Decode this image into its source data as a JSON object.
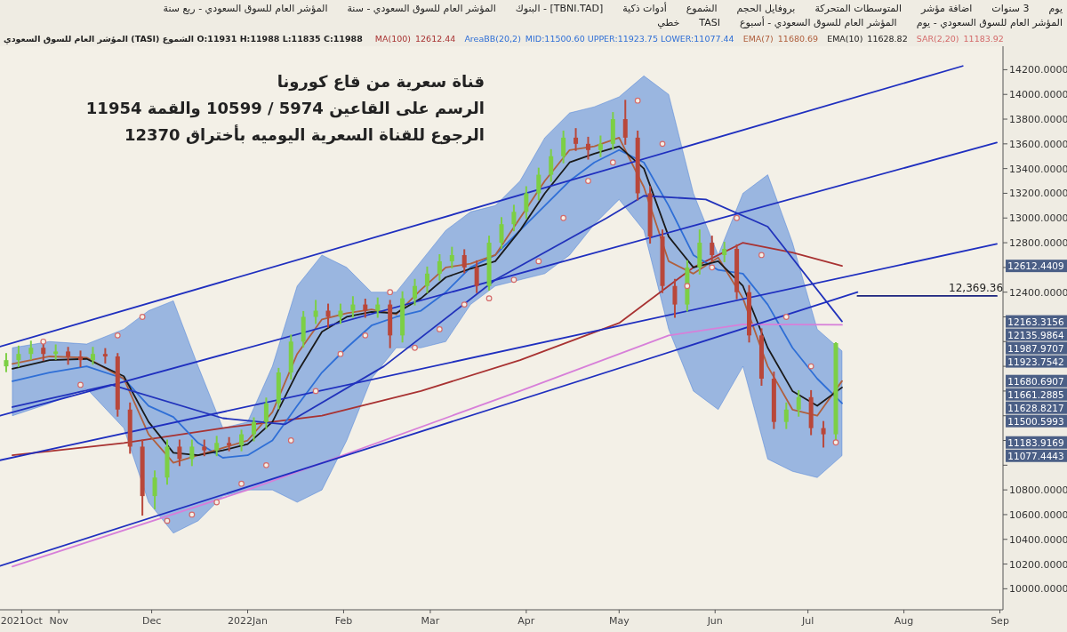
{
  "chart_data": {
    "type": "candlestick",
    "title": "قناة سعرية من قاع كورونا",
    "subtitle": "المؤشر العام للسوق السعودي (TASI) الشموع O:11931 H:11988 L:11835 C:11988",
    "x": [
      "2021-10-15",
      "2021-10-19",
      "2021-10-23",
      "2021-10-27",
      "2021-10-31",
      "2021-11-04",
      "2021-11-08",
      "2021-11-12",
      "2021-11-16",
      "2021-11-20",
      "2021-11-24",
      "2021-11-28",
      "2021-12-02",
      "2021-12-06",
      "2021-12-10",
      "2021-12-14",
      "2021-12-18",
      "2021-12-22",
      "2021-12-26",
      "2021-12-30",
      "2022-01-03",
      "2022-01-07",
      "2022-01-11",
      "2022-01-15",
      "2022-01-19",
      "2022-01-23",
      "2022-01-27",
      "2022-01-31",
      "2022-02-04",
      "2022-02-08",
      "2022-02-12",
      "2022-02-16",
      "2022-02-20",
      "2022-02-24",
      "2022-02-28",
      "2022-03-04",
      "2022-03-08",
      "2022-03-12",
      "2022-03-16",
      "2022-03-20",
      "2022-03-24",
      "2022-03-28",
      "2022-04-01",
      "2022-04-05",
      "2022-04-09",
      "2022-04-13",
      "2022-04-17",
      "2022-04-21",
      "2022-04-25",
      "2022-04-29",
      "2022-05-03",
      "2022-05-07",
      "2022-05-11",
      "2022-05-15",
      "2022-05-19",
      "2022-05-23",
      "2022-05-27",
      "2022-05-31",
      "2022-06-04",
      "2022-06-08",
      "2022-06-12",
      "2022-06-16",
      "2022-06-20",
      "2022-06-24",
      "2022-06-28",
      "2022-07-02",
      "2022-07-06",
      "2022-07-10"
    ],
    "ohlc": [
      [
        11800,
        11900,
        11760,
        11850
      ],
      [
        11850,
        11960,
        11800,
        11900
      ],
      [
        11900,
        12000,
        11860,
        11950
      ],
      [
        11950,
        11990,
        11850,
        11900
      ],
      [
        11900,
        11970,
        11860,
        11920
      ],
      [
        11920,
        11950,
        11820,
        11880
      ],
      [
        11880,
        11920,
        11800,
        11850
      ],
      [
        11850,
        11950,
        11820,
        11900
      ],
      [
        11900,
        11940,
        11830,
        11880
      ],
      [
        11880,
        11900,
        11400,
        11450
      ],
      [
        11450,
        11500,
        11100,
        11150
      ],
      [
        11150,
        11200,
        10599,
        10750
      ],
      [
        10750,
        10950,
        10650,
        10900
      ],
      [
        10900,
        11200,
        10850,
        11150
      ],
      [
        11150,
        11200,
        11000,
        11050
      ],
      [
        11050,
        11200,
        11000,
        11150
      ],
      [
        11150,
        11200,
        11080,
        11120
      ],
      [
        11120,
        11230,
        11080,
        11180
      ],
      [
        11180,
        11220,
        11120,
        11160
      ],
      [
        11160,
        11280,
        11120,
        11250
      ],
      [
        11250,
        11380,
        11200,
        11350
      ],
      [
        11350,
        11540,
        11300,
        11500
      ],
      [
        11500,
        11780,
        11460,
        11750
      ],
      [
        11750,
        12050,
        11700,
        12000
      ],
      [
        12000,
        12240,
        11960,
        12200
      ],
      [
        12200,
        12330,
        12150,
        12250
      ],
      [
        12250,
        12300,
        12120,
        12200
      ],
      [
        12200,
        12300,
        12150,
        12250
      ],
      [
        12250,
        12360,
        12200,
        12300
      ],
      [
        12300,
        12340,
        12200,
        12250
      ],
      [
        12250,
        12350,
        12200,
        12300
      ],
      [
        12300,
        12330,
        11954,
        12050
      ],
      [
        12050,
        12400,
        12000,
        12350
      ],
      [
        12350,
        12500,
        12300,
        12450
      ],
      [
        12450,
        12600,
        12400,
        12550
      ],
      [
        12550,
        12700,
        12500,
        12650
      ],
      [
        12650,
        12760,
        12600,
        12700
      ],
      [
        12700,
        12740,
        12560,
        12600
      ],
      [
        12600,
        12650,
        12400,
        12450
      ],
      [
        12450,
        12850,
        12420,
        12800
      ],
      [
        12800,
        13000,
        12760,
        12950
      ],
      [
        12950,
        13100,
        12900,
        13050
      ],
      [
        13050,
        13250,
        13000,
        13200
      ],
      [
        13200,
        13400,
        13150,
        13350
      ],
      [
        13350,
        13550,
        13300,
        13500
      ],
      [
        13500,
        13700,
        13450,
        13650
      ],
      [
        13650,
        13720,
        13550,
        13600
      ],
      [
        13600,
        13650,
        13480,
        13550
      ],
      [
        13550,
        13660,
        13500,
        13600
      ],
      [
        13600,
        13850,
        13560,
        13800
      ],
      [
        13800,
        13949,
        13600,
        13650
      ],
      [
        13650,
        13700,
        13150,
        13200
      ],
      [
        13200,
        13250,
        12800,
        12850
      ],
      [
        12850,
        12900,
        12400,
        12450
      ],
      [
        12450,
        12500,
        12200,
        12300
      ],
      [
        12300,
        12650,
        12250,
        12600
      ],
      [
        12600,
        12900,
        12550,
        12800
      ],
      [
        12800,
        12850,
        12650,
        12700
      ],
      [
        12700,
        12800,
        12650,
        12750
      ],
      [
        12750,
        12780,
        12350,
        12400
      ],
      [
        12400,
        12450,
        12000,
        12050
      ],
      [
        12050,
        12100,
        11650,
        11700
      ],
      [
        11700,
        11750,
        11300,
        11350
      ],
      [
        11350,
        11500,
        11300,
        11450
      ],
      [
        11450,
        11600,
        11400,
        11550
      ],
      [
        11550,
        11600,
        11250,
        11300
      ],
      [
        11300,
        11350,
        11150,
        11250
      ],
      [
        11250,
        11988,
        11200,
        11988
      ]
    ],
    "series": [
      {
        "name": "MA(100)",
        "type": "line",
        "color": "#a83232",
        "x": [
          "2021-10-17",
          "2021-11-22",
          "2021-12-24",
          "2022-01-25",
          "2022-02-26",
          "2022-03-30",
          "2022-05-01",
          "2022-05-25",
          "2022-06-10",
          "2022-06-26",
          "2022-07-12"
        ],
        "values": [
          11080,
          11180,
          11300,
          11400,
          11600,
          11850,
          12150,
          12600,
          12800,
          12720,
          12612
        ]
      },
      {
        "name": "AreaBB(20,2)",
        "type": "line",
        "color": "#2f6fd6",
        "x": [
          "2021-10-17",
          "2021-10-29",
          "2021-11-10",
          "2021-11-22",
          "2021-11-30",
          "2021-12-08",
          "2021-12-16",
          "2021-12-24",
          "2022-01-01",
          "2022-01-09",
          "2022-01-17",
          "2022-01-25",
          "2022-02-02",
          "2022-02-10",
          "2022-02-18",
          "2022-02-26",
          "2022-03-06",
          "2022-03-14",
          "2022-03-22",
          "2022-03-30",
          "2022-04-07",
          "2022-04-15",
          "2022-04-23",
          "2022-05-01",
          "2022-05-09",
          "2022-05-17",
          "2022-05-25",
          "2022-06-02",
          "2022-06-10",
          "2022-06-18",
          "2022-06-26",
          "2022-07-04",
          "2022-07-12"
        ],
        "values": [
          11680,
          11750,
          11800,
          11700,
          11480,
          11390,
          11180,
          11060,
          11080,
          11200,
          11480,
          11750,
          11950,
          12130,
          12200,
          12250,
          12400,
          12600,
          12700,
          12900,
          13100,
          13300,
          13450,
          13550,
          13450,
          13100,
          12700,
          12580,
          12550,
          12300,
          11950,
          11700,
          11501
        ],
        "lower": [
          11400,
          11500,
          11620,
          11300,
          10700,
          10450,
          10550,
          10750,
          10800,
          10800,
          10700,
          10800,
          11200,
          11700,
          11950,
          11950,
          12000,
          12300,
          12450,
          12500,
          12550,
          12700,
          12950,
          13150,
          12900,
          12100,
          11600,
          11450,
          11800,
          11050,
          10950,
          10900,
          11077
        ],
        "upper": [
          11950,
          12000,
          11980,
          12100,
          12250,
          12330,
          11800,
          11300,
          11350,
          11800,
          12450,
          12700,
          12600,
          12400,
          12400,
          12650,
          12900,
          13050,
          13100,
          13300,
          13650,
          13850,
          13900,
          13980,
          14150,
          14000,
          13200,
          12700,
          13200,
          13350,
          12800,
          12100,
          11924
        ]
      },
      {
        "name": "EMA(7)",
        "type": "line",
        "color": "#b0603e",
        "x": [
          "2021-10-17",
          "2021-10-29",
          "2021-11-10",
          "2021-11-22",
          "2021-11-30",
          "2021-12-08",
          "2021-12-16",
          "2021-12-24",
          "2022-01-01",
          "2022-01-09",
          "2022-01-17",
          "2022-01-25",
          "2022-02-02",
          "2022-02-10",
          "2022-02-18",
          "2022-02-26",
          "2022-03-06",
          "2022-03-14",
          "2022-03-22",
          "2022-03-30",
          "2022-04-07",
          "2022-04-15",
          "2022-04-23",
          "2022-05-01",
          "2022-05-09",
          "2022-05-17",
          "2022-05-25",
          "2022-06-02",
          "2022-06-10",
          "2022-06-18",
          "2022-06-26",
          "2022-07-04",
          "2022-07-12"
        ],
        "values": [
          11820,
          11880,
          11870,
          11700,
          11250,
          11020,
          11080,
          11140,
          11200,
          11430,
          11900,
          12180,
          12230,
          12260,
          12220,
          12420,
          12600,
          12630,
          12700,
          13000,
          13300,
          13550,
          13580,
          13650,
          13250,
          12650,
          12550,
          12680,
          12350,
          11800,
          11450,
          11400,
          11681
        ]
      },
      {
        "name": "EMA(10)",
        "type": "line",
        "color": "#1a1a1a",
        "x": [
          "2021-10-17",
          "2021-10-29",
          "2021-11-10",
          "2021-11-22",
          "2021-11-30",
          "2021-12-08",
          "2021-12-16",
          "2021-12-24",
          "2022-01-01",
          "2022-01-09",
          "2022-01-17",
          "2022-01-25",
          "2022-02-02",
          "2022-02-10",
          "2022-02-18",
          "2022-02-26",
          "2022-03-06",
          "2022-03-14",
          "2022-03-22",
          "2022-03-30",
          "2022-04-07",
          "2022-04-15",
          "2022-04-23",
          "2022-05-01",
          "2022-05-09",
          "2022-05-17",
          "2022-05-25",
          "2022-06-02",
          "2022-06-10",
          "2022-06-18",
          "2022-06-26",
          "2022-07-04",
          "2022-07-12"
        ],
        "values": [
          11780,
          11850,
          11860,
          11720,
          11350,
          11100,
          11080,
          11120,
          11170,
          11350,
          11750,
          12080,
          12200,
          12240,
          12230,
          12350,
          12520,
          12590,
          12650,
          12900,
          13200,
          13450,
          13520,
          13580,
          13400,
          12850,
          12600,
          12650,
          12450,
          11950,
          11600,
          11480,
          11629
        ]
      },
      {
        "name": "SAR(2,20)",
        "type": "scatter",
        "marker": "circle",
        "color": "#d46a6a",
        "x": [
          "2021-10-27",
          "2021-11-08",
          "2021-11-20",
          "2021-11-28",
          "2021-12-06",
          "2021-12-14",
          "2021-12-22",
          "2021-12-30",
          "2022-01-07",
          "2022-01-15",
          "2022-01-23",
          "2022-01-31",
          "2022-02-08",
          "2022-02-16",
          "2022-02-24",
          "2022-03-04",
          "2022-03-12",
          "2022-03-20",
          "2022-03-28",
          "2022-04-05",
          "2022-04-13",
          "2022-04-21",
          "2022-04-29",
          "2022-05-07",
          "2022-05-15",
          "2022-05-23",
          "2022-05-31",
          "2022-06-08",
          "2022-06-16",
          "2022-06-24",
          "2022-07-02",
          "2022-07-10"
        ],
        "values": [
          12000,
          11650,
          12050,
          12200,
          10550,
          10600,
          10700,
          10850,
          11000,
          11200,
          11600,
          11900,
          12050,
          12400,
          11950,
          12100,
          12300,
          12350,
          12500,
          12650,
          13000,
          13300,
          13450,
          13950,
          13600,
          12450,
          12600,
          13000,
          12700,
          12200,
          11800,
          11184
        ]
      },
      {
        "type": "line",
        "color": "#2233bb",
        "x": [
          "2021-10-17",
          "2021-11-18",
          "2021-12-24",
          "2022-01-13",
          "2022-02-14",
          "2022-03-22",
          "2022-04-27",
          "2022-05-09",
          "2022-05-29",
          "2022-06-18",
          "2022-07-12"
        ],
        "values": [
          11470,
          11650,
          11380,
          11330,
          11800,
          12500,
          13000,
          13180,
          13150,
          12930,
          12163
        ]
      },
      {
        "type": "line",
        "color": "#d77fd9",
        "x": [
          "2021-10-17",
          "2022-01-01",
          "2022-03-30",
          "2022-05-17",
          "2022-06-10",
          "2022-07-12"
        ],
        "values": [
          10180,
          10800,
          11600,
          12050,
          12140,
          12136
        ]
      },
      {
        "type": "line",
        "color": "#1f2fbf",
        "x": [
          "2021-10-13",
          "2022-08-20"
        ],
        "values": [
          11960,
          14230
        ]
      },
      {
        "type": "line",
        "color": "#1f2fbf",
        "x": [
          "2021-10-13",
          "2022-08-31"
        ],
        "values": [
          11400,
          13610
        ]
      },
      {
        "type": "line",
        "color": "#1f2fbf",
        "x": [
          "2021-10-13",
          "2022-08-31"
        ],
        "values": [
          11040,
          12790
        ]
      },
      {
        "type": "line",
        "color": "#1f2fbf",
        "x": [
          "2021-10-13",
          "2022-07-17"
        ],
        "values": [
          10185,
          12400
        ]
      },
      {
        "type": "line",
        "color": "#1a237e",
        "x": [
          "2022-07-17",
          "2022-08-31"
        ],
        "values": [
          12369.36,
          12369.36
        ]
      }
    ],
    "xlim": [
      "2021-10-13",
      "2022-09-02"
    ],
    "xticks": [
      {
        "value": "2021-10-20",
        "label": "2021Oct"
      },
      {
        "value": "2021-11-01",
        "label": "Nov"
      },
      {
        "value": "2021-12-01",
        "label": "Dec"
      },
      {
        "value": "2022-01-01",
        "label": "2022Jan"
      },
      {
        "value": "2022-02-01",
        "label": "Feb"
      },
      {
        "value": "2022-03-01",
        "label": "Mar"
      },
      {
        "value": "2022-04-01",
        "label": "Apr"
      },
      {
        "value": "2022-05-01",
        "label": "May"
      },
      {
        "value": "2022-06-01",
        "label": "Jun"
      },
      {
        "value": "2022-07-01",
        "label": "Jul"
      },
      {
        "value": "2022-08-01",
        "label": "Aug"
      },
      {
        "value": "2022-09-01",
        "label": "Sep"
      }
    ],
    "ylim": [
      9830,
      14390
    ],
    "yticks": [
      {
        "value": 10000,
        "label": "10000.0000"
      },
      {
        "value": 10200,
        "label": "10200.0000"
      },
      {
        "value": 10400,
        "label": "10400.0000"
      },
      {
        "value": 10600,
        "label": "10600.0000"
      },
      {
        "value": 10800,
        "label": "10800.0000"
      },
      {
        "value": 11000,
        "label": null
      },
      {
        "value": 11200,
        "label": null
      },
      {
        "value": 11400,
        "label": null
      },
      {
        "value": 11600,
        "label": null
      },
      {
        "value": 11800,
        "label": null
      },
      {
        "value": 12000,
        "label": null
      },
      {
        "value": 12200,
        "label": null
      },
      {
        "value": 12400,
        "label": "12400.0000"
      },
      {
        "value": 12600,
        "label": null
      },
      {
        "value": 12800,
        "label": "12800.0000"
      },
      {
        "value": 13000,
        "label": "13000.0000"
      },
      {
        "value": 13200,
        "label": "13200.0000"
      },
      {
        "value": 13400,
        "label": "13400.0000"
      },
      {
        "value": 13600,
        "label": "13600.0000"
      },
      {
        "value": 13800,
        "label": "13800.0000"
      },
      {
        "value": 14000,
        "label": "14000.0000"
      },
      {
        "value": 14200,
        "label": "14200.0000"
      }
    ],
    "grid": false,
    "legend": "top right",
    "annotations": [
      "12612.44",
      "MID:11500.60 UPPER:11923.75 LOWER:11077.44",
      "11680.69",
      "11628.82",
      "11183.92",
      "الرسم على القاعين 5974 / 10599 والقمة 11954",
      "الرجوع للقناة السعرية اليوميه بأختراق 12370",
      {
        "text": "12,369.36",
        "x": "2022-08-25",
        "y": 12369.36
      },
      "12612.4409",
      "12163.3156",
      "12135.9864",
      "11987.9707",
      "11923.7542",
      "11680.6907",
      "11661.2885",
      "11628.8217",
      "11500.5993",
      "11183.9169",
      "11077.4443",
      "يوم",
      "3 سنوات",
      "اضافة مؤشر",
      "المتوسطات المتحركة",
      "بروفايل الحجم",
      "الشموع",
      "أدوات ذكية",
      "[TBNI.TAD] - البنوك",
      "المؤشر العام للسوق السعودي - سنة",
      "المؤشر العام للسوق السعودي - ربع سنة",
      "المؤشر العام للسوق السعودي - يوم",
      "المؤشر العام للسوق السعودي - أسبوع",
      "TASI",
      "خطي"
    ]
  }
}
